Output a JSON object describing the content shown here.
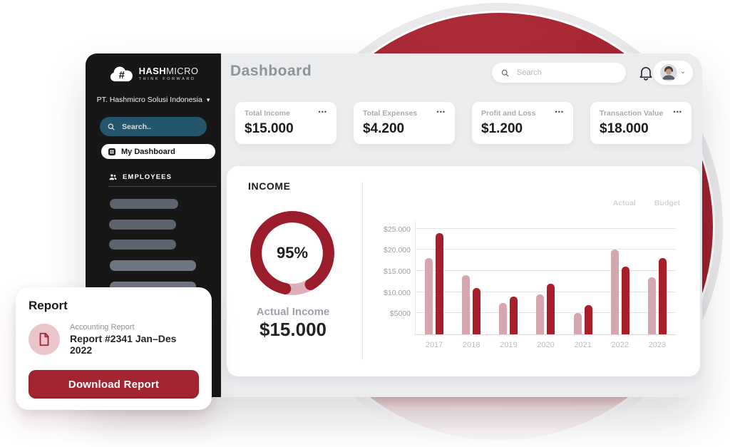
{
  "sidebar": {
    "brand_bold": "HASH",
    "brand_light": "MICRO",
    "brand_tagline": "THINK FORWARD",
    "company": "PT. Hashmicro Solusi Indonesia",
    "search_placeholder": "Search..",
    "active_item": "My Dashboard",
    "section_header": "EMPLOYEES"
  },
  "header": {
    "title": "Dashboard",
    "search_placeholder": "Search"
  },
  "stats": [
    {
      "label": "Total Income",
      "value": "$15.000"
    },
    {
      "label": "Total Expenses",
      "value": "$4.200"
    },
    {
      "label": "Profit and Loss",
      "value": "$1.200"
    },
    {
      "label": "Transaction Value",
      "value": "$18.000"
    }
  ],
  "income_panel": {
    "title": "INCOME",
    "donut_percent": "95%",
    "actual_income_label": "Actual Income",
    "actual_income_value": "$15.000"
  },
  "chart_data": {
    "type": "bar",
    "title": "",
    "xlabel": "",
    "ylabel": "",
    "categories": [
      "2017",
      "2018",
      "2019",
      "2020",
      "2021",
      "2022",
      "2023"
    ],
    "series": [
      {
        "name": "Actual",
        "color": "#d6a6ae",
        "values": [
          18000,
          14000,
          7500,
          9500,
          5000,
          20000,
          13500
        ]
      },
      {
        "name": "Budget",
        "color": "#a81f29",
        "values": [
          24000,
          11000,
          9000,
          12000,
          7000,
          16000,
          18000
        ]
      }
    ],
    "y_ticks": [
      {
        "label": "$25.000",
        "value": 25000
      },
      {
        "label": "$20.000",
        "value": 20000
      },
      {
        "label": "$15.000",
        "value": 15000
      },
      {
        "label": "$10.000",
        "value": 10000
      },
      {
        "label": "$5000",
        "value": 5000
      }
    ],
    "ylim": [
      0,
      27000
    ],
    "grid": true,
    "legend_position": "top-right"
  },
  "report_card": {
    "title": "Report",
    "file_type": "Accounting Report",
    "file_name": "Report #2341 Jan–Des 2022",
    "download_button": "Download Report"
  },
  "icons": {
    "more": "•••",
    "caret_down": "▾",
    "chevron_down": "⌄"
  },
  "colors": {
    "brand_red": "#a4232f",
    "bar_actual": "#d6a6ae",
    "bar_budget": "#a81f29",
    "donut_fill": "#9b1c2b",
    "donut_rest": "#ddafba",
    "sidebar_bg": "#171717",
    "main_bg": "#ebecee",
    "search_teal": "#23566b",
    "button_red": "#a32531"
  }
}
